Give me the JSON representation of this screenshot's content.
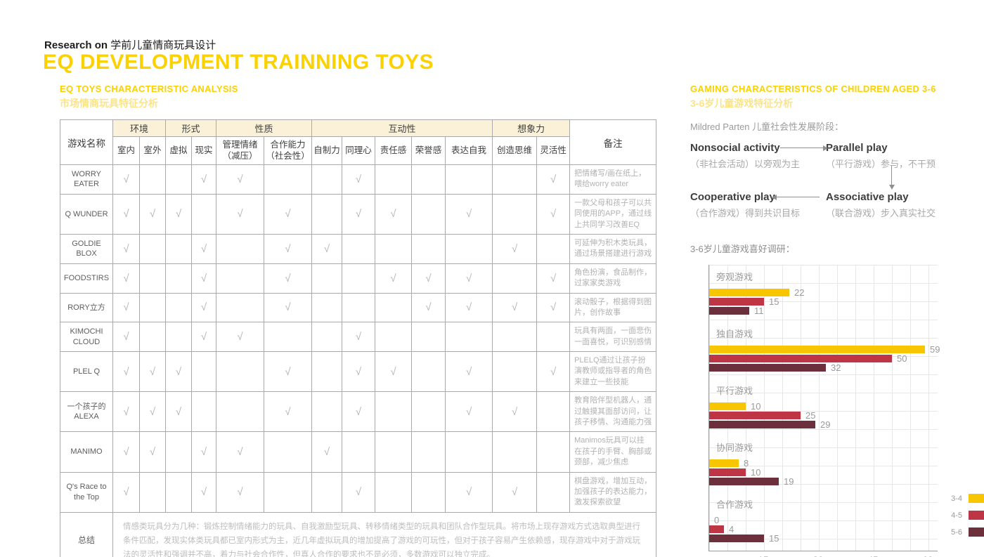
{
  "page": {
    "breadcrumb_en": "Research on",
    "breadcrumb_zh": "学前儿童情商玩具设计",
    "title": "EQ DEVELOPMENT TRAINNING TOYS"
  },
  "colors": {
    "accent_yellow": "#FBD100",
    "light_yellow": "#FBE488",
    "bar_yellow": "#F7C600",
    "bar_red": "#BE3645",
    "bar_maroon": "#6E2F3C",
    "text_dark": "#3D3D3D",
    "text_gray": "#9B9B9B"
  },
  "left": {
    "heading_en": "EQ TOYS CHARACTERISTIC ANALYSIS",
    "heading_zh": "市场情商玩具特征分析",
    "table": {
      "name_header": "游戏名称",
      "remark_header": "备注",
      "check_glyph": "√",
      "groups": [
        {
          "label": "环境",
          "cols": [
            "室内",
            "室外"
          ]
        },
        {
          "label": "形式",
          "cols": [
            "虚拟",
            "现实"
          ]
        },
        {
          "label": "性质",
          "cols": [
            "管理情绪（减压）",
            "合作能力（社会性）"
          ]
        },
        {
          "label": "互动性",
          "cols": [
            "自制力",
            "同理心",
            "责任感",
            "荣誉感",
            "表达自我"
          ]
        },
        {
          "label": "想象力",
          "cols": [
            "创造思维",
            "灵活性"
          ]
        }
      ],
      "rows": [
        {
          "name": "WORRY EATER",
          "checks": [
            1,
            0,
            0,
            1,
            1,
            0,
            0,
            1,
            0,
            0,
            0,
            0,
            1
          ],
          "remark": "把情绪写/画在纸上，喂给worry eater"
        },
        {
          "name": "Q WUNDER",
          "checks": [
            1,
            1,
            1,
            0,
            1,
            1,
            0,
            1,
            1,
            0,
            1,
            0,
            1
          ],
          "remark": "一款父母和孩子可以共同使用的APP，通过线上共同学习改善EQ"
        },
        {
          "name": "GOLDIE BLOX",
          "checks": [
            1,
            0,
            0,
            1,
            0,
            1,
            1,
            0,
            0,
            0,
            0,
            1,
            0
          ],
          "remark": "可延伸为积木类玩具，通过场景搭建进行游戏"
        },
        {
          "name": "FOODSTIRS",
          "checks": [
            1,
            0,
            0,
            1,
            0,
            1,
            0,
            0,
            1,
            1,
            1,
            0,
            1
          ],
          "remark": "角色扮演，食品制作，过家家类游戏"
        },
        {
          "name": "RORY立方",
          "checks": [
            1,
            0,
            0,
            1,
            0,
            1,
            0,
            0,
            0,
            1,
            1,
            1,
            1
          ],
          "remark": "滚动骰子，根据得到图片，创作故事"
        },
        {
          "name": "KIMOCHI CLOUD",
          "checks": [
            1,
            0,
            0,
            1,
            1,
            0,
            0,
            1,
            0,
            0,
            0,
            0,
            0
          ],
          "remark": "玩具有两面，一面悲伤一面喜悦，可识别感情"
        },
        {
          "name": "PLEL Q",
          "checks": [
            1,
            1,
            1,
            0,
            0,
            1,
            0,
            1,
            1,
            0,
            1,
            0,
            1
          ],
          "remark": "PLELQ通过让孩子扮演教师或指导者的角色来建立一些技能"
        },
        {
          "name": "一个孩子的ALEXA",
          "checks": [
            1,
            1,
            1,
            0,
            0,
            1,
            0,
            1,
            0,
            0,
            1,
            1,
            0
          ],
          "remark": "教育陪伴型机器人，通过触摸其面部访问，让孩子移情、沟通能力强"
        },
        {
          "name": "MANIMO",
          "checks": [
            1,
            1,
            0,
            1,
            1,
            0,
            1,
            0,
            0,
            0,
            0,
            0,
            0
          ],
          "remark": "Manimos玩具可以挂在孩子的手臂、胸部或颈部，减少焦虑"
        },
        {
          "name": "Q's Race to the Top",
          "checks": [
            1,
            0,
            0,
            1,
            1,
            0,
            0,
            1,
            0,
            0,
            1,
            1,
            0
          ],
          "remark": "棋盘游戏，增加互动，加强孩子的表达能力，激发探索欲望"
        }
      ],
      "summary": {
        "label": "总结",
        "text": "情感类玩具分为几种：锻炼控制情绪能力的玩具、自我激励型玩具、转移情绪类型的玩具和团队合作型玩具。将市场上现存游戏方式选取典型进行条件匹配，发现实体类玩具都已室内形式为主，近几年虚拟玩具的增加提高了游戏的可玩性，但对于孩子容易产生依赖感，现存游戏中对于游戏玩法的灵活性和强调并不高，着力与社会合作性，但真人合作的要求也不是必须，多数游戏可以独立完成。"
      }
    }
  },
  "right": {
    "heading_en": "GAMING CHARACTERISTICS OF CHILDREN AGED 3-6",
    "heading_zh": "3-6岁儿童游戏特征分析",
    "parten_intro": "Mildred Parten 儿童社会性发展阶段：",
    "flow": {
      "nodes": [
        {
          "title": "Nonsocial activity",
          "desc": "（非社会活动）以旁观为主"
        },
        {
          "title": "Parallel play",
          "desc": "（平行游戏）参与，不干预"
        },
        {
          "title": "Cooperative play",
          "desc": "（合作游戏）得到共识目标"
        },
        {
          "title": "Associative play",
          "desc": "（联合游戏）步入真实社交"
        }
      ]
    },
    "chart_title": "3-6岁儿童游戏喜好调研："
  },
  "chart_data": {
    "type": "bar",
    "orientation": "horizontal",
    "title": "3-6岁儿童游戏喜好调研：",
    "categories": [
      "旁观游戏",
      "独自游戏",
      "平行游戏",
      "协同游戏",
      "合作游戏"
    ],
    "series": [
      {
        "name": "3-4",
        "color": "#F7C600",
        "values": [
          22,
          59,
          10,
          8,
          0
        ]
      },
      {
        "name": "4-5",
        "color": "#BE3645",
        "values": [
          15,
          50,
          25,
          10,
          4
        ]
      },
      {
        "name": "5-6",
        "color": "#6E2F3C",
        "values": [
          11,
          32,
          29,
          19,
          15
        ]
      }
    ],
    "xlim": [
      0,
      62
    ],
    "xticks": [
      15,
      30,
      45,
      60
    ],
    "grid": true,
    "legend_position": "right-bottom"
  }
}
